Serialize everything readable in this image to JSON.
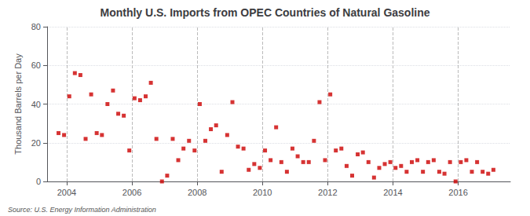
{
  "chart_data": {
    "type": "scatter",
    "title": "Monthly U.S. Imports from OPEC Countries of Natural Gasoline",
    "ylabel": "Thousand Barrels per Day",
    "annotations": [
      "Source: U.S. Energy Information Administration"
    ],
    "color": "#cc0000",
    "marker": "square",
    "grid": true,
    "xlim": [
      2003.4,
      2017.6
    ],
    "xticks": [
      2004,
      2006,
      2008,
      2010,
      2012,
      2014,
      2016
    ],
    "ylim": [
      0,
      80
    ],
    "yticks": [
      0,
      20,
      40,
      60,
      80
    ],
    "x": [
      2003.75,
      2003.92,
      2004.08,
      2004.25,
      2004.42,
      2004.58,
      2004.75,
      2004.92,
      2005.08,
      2005.25,
      2005.42,
      2005.58,
      2005.75,
      2005.92,
      2006.08,
      2006.25,
      2006.42,
      2006.58,
      2006.75,
      2006.92,
      2007.08,
      2007.25,
      2007.42,
      2007.58,
      2007.75,
      2007.92,
      2008.08,
      2008.25,
      2008.42,
      2008.58,
      2008.75,
      2008.92,
      2009.08,
      2009.25,
      2009.42,
      2009.58,
      2009.75,
      2009.92,
      2010.08,
      2010.25,
      2010.42,
      2010.58,
      2010.75,
      2010.92,
      2011.08,
      2011.25,
      2011.42,
      2011.58,
      2011.75,
      2011.92,
      2012.08,
      2012.25,
      2012.42,
      2012.58,
      2012.75,
      2012.92,
      2013.08,
      2013.25,
      2013.42,
      2013.58,
      2013.75,
      2013.92,
      2014.08,
      2014.25,
      2014.42,
      2014.58,
      2014.75,
      2014.92,
      2015.08,
      2015.25,
      2015.42,
      2015.58,
      2015.75,
      2015.92,
      2016.08,
      2016.25,
      2016.42,
      2016.58,
      2016.75,
      2016.92,
      2017.08
    ],
    "values": [
      25,
      24,
      44,
      56,
      55,
      22,
      45,
      25,
      24,
      40,
      47,
      35,
      34,
      16,
      43,
      42,
      44,
      51,
      22,
      0,
      3,
      22,
      11,
      17,
      21,
      16,
      40,
      21,
      27,
      29,
      5,
      24,
      41,
      18,
      17,
      6,
      9,
      7,
      16,
      11,
      28,
      10,
      5,
      17,
      13,
      10,
      10,
      21,
      41,
      11,
      45,
      16,
      17,
      8,
      3,
      14,
      15,
      10,
      2,
      7,
      9,
      10,
      7,
      8,
      5,
      10,
      11,
      5,
      10,
      11,
      5,
      4,
      10,
      0,
      10,
      11,
      5,
      10,
      5,
      4,
      6
    ]
  }
}
